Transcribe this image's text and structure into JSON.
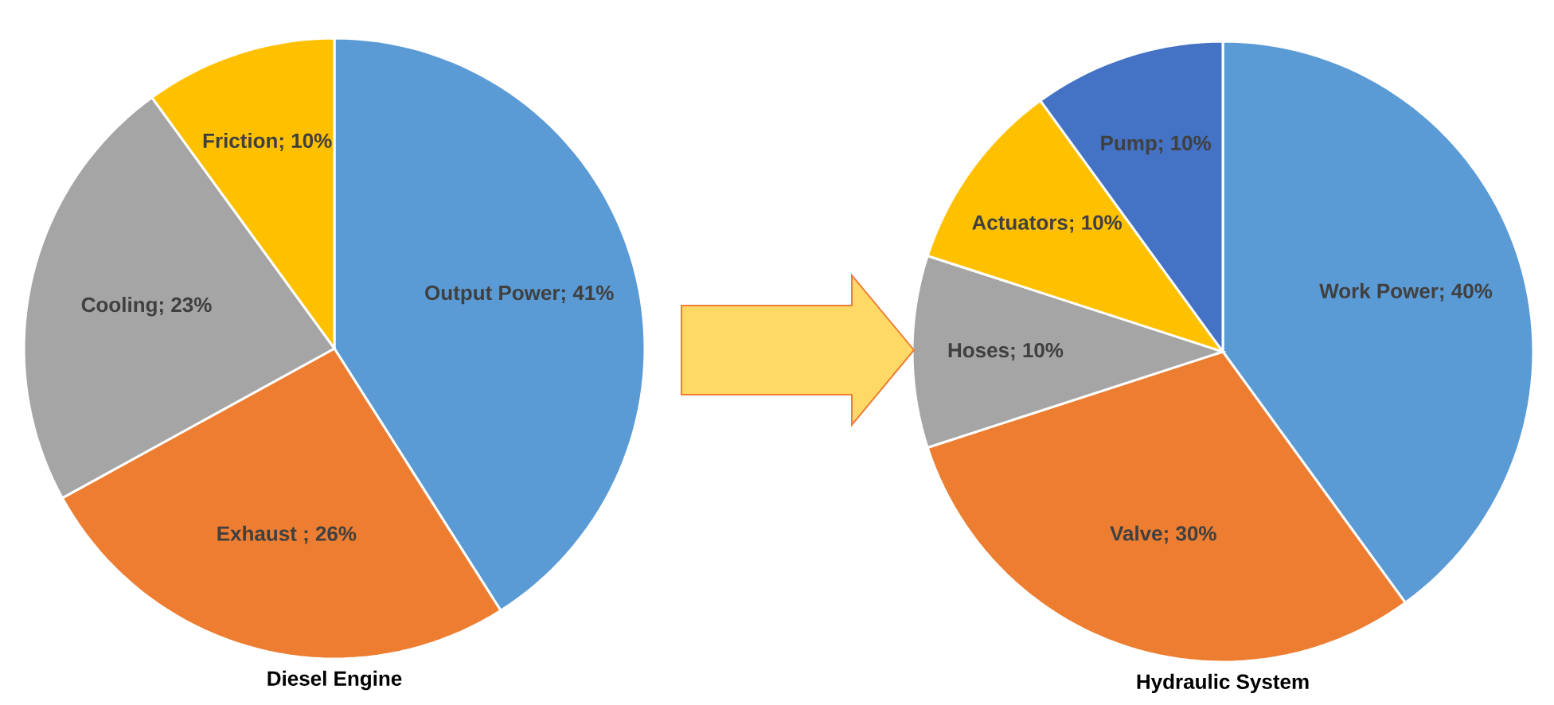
{
  "chart_data": [
    {
      "type": "pie",
      "title": "Diesel Engine",
      "categories": [
        "Output Power; 41%",
        "Exhaust ; 26%",
        "Cooling; 23%",
        "Friction; 10%"
      ],
      "values": [
        41,
        26,
        23,
        10
      ],
      "colors": [
        "#5b9bd5",
        "#ed7d31",
        "#a5a5a5",
        "#ffc000"
      ]
    },
    {
      "type": "pie",
      "title": "Hydraulic System",
      "categories": [
        "Work Power; 40%",
        "Valve; 30%",
        "Hoses; 10%",
        "Actuators; 10%",
        "Pump; 10%"
      ],
      "values": [
        40,
        30,
        10,
        10,
        10
      ],
      "colors": [
        "#5b9bd5",
        "#ed7d31",
        "#a5a5a5",
        "#ffc000",
        "#4472c4"
      ]
    }
  ]
}
